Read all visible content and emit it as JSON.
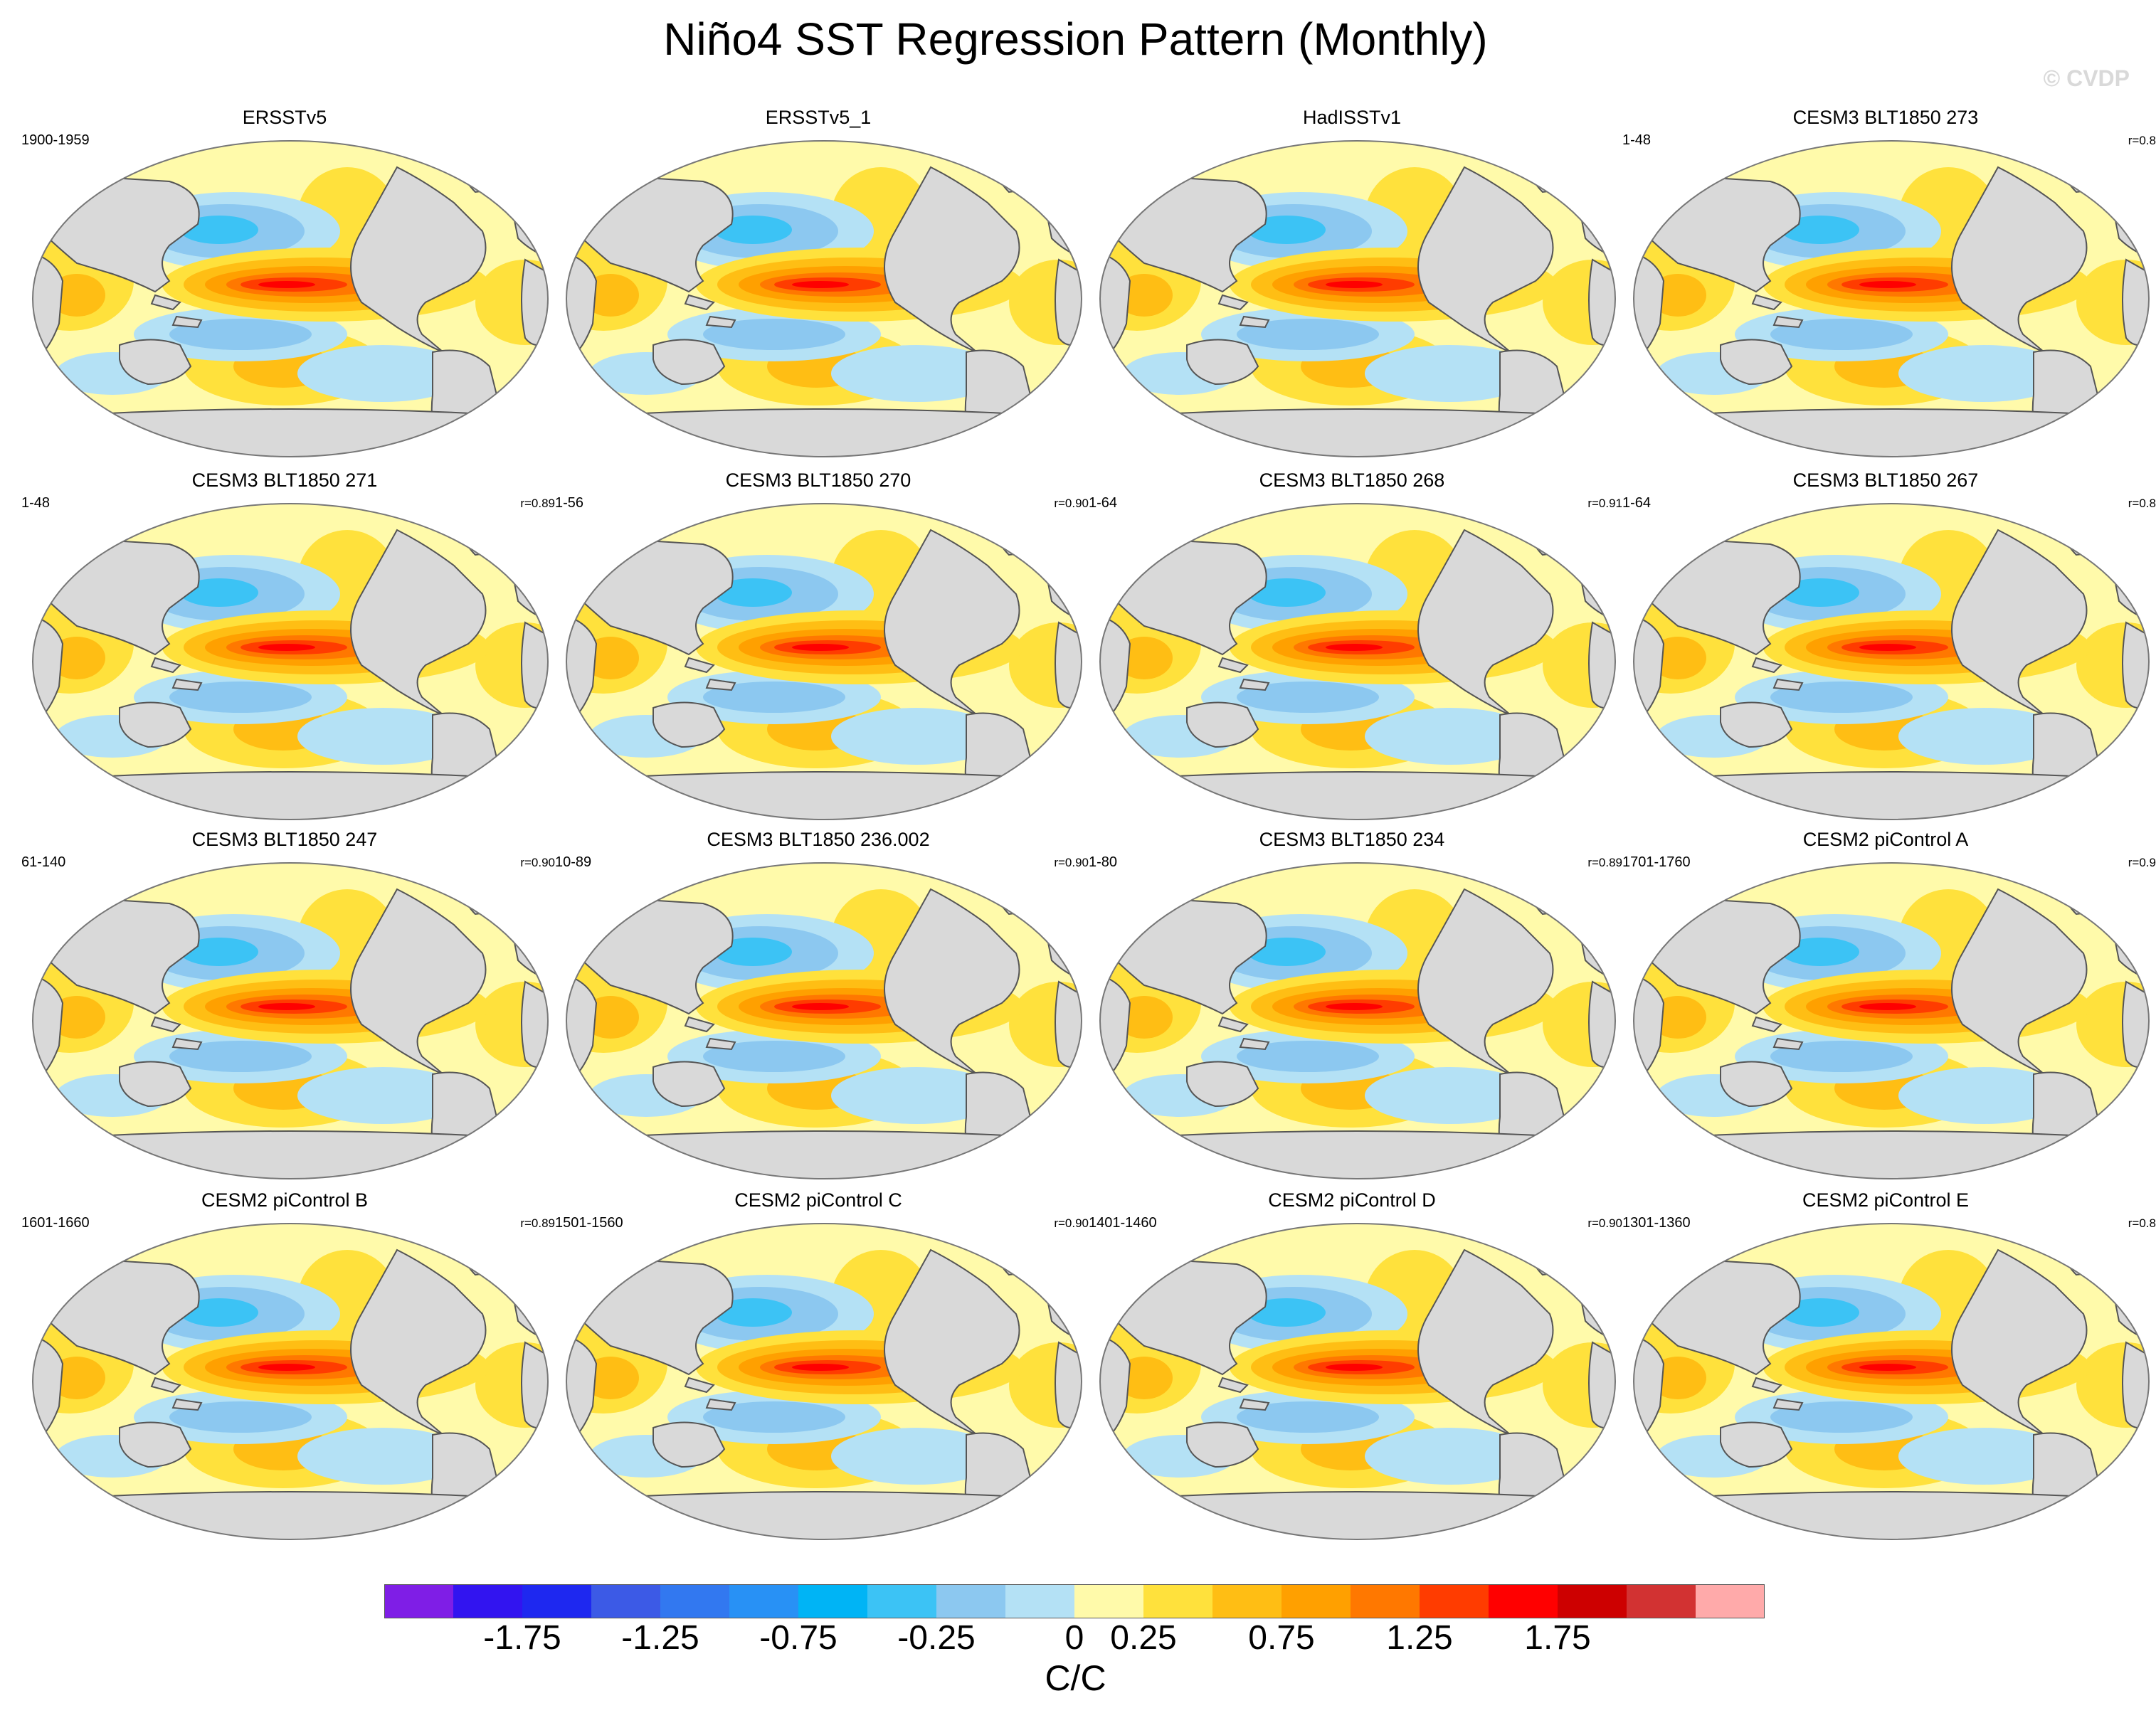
{
  "title": "Niño4 SST Regression Pattern (Monthly)",
  "watermark": "© CVDP",
  "panels": [
    {
      "title": "ERSSTv5",
      "years": "1900-1959",
      "corr": ""
    },
    {
      "title": "ERSSTv5_1",
      "years": "",
      "corr": ""
    },
    {
      "title": "HadISSTv1",
      "years": "",
      "corr": ""
    },
    {
      "title": "CESM3 BLT1850 273",
      "years": "1-48",
      "corr": "r=0.8"
    },
    {
      "title": "CESM3 BLT1850 271",
      "years": "1-48",
      "corr": "r=0.89"
    },
    {
      "title": "CESM3 BLT1850 270",
      "years": "1-56",
      "corr": "r=0.90"
    },
    {
      "title": "CESM3 BLT1850 268",
      "years": "1-64",
      "corr": "r=0.91"
    },
    {
      "title": "CESM3 BLT1850 267",
      "years": "1-64",
      "corr": "r=0.8"
    },
    {
      "title": "CESM3 BLT1850 247",
      "years": "61-140",
      "corr": "r=0.90"
    },
    {
      "title": "CESM3 BLT1850 236.002",
      "years": "10-89",
      "corr": "r=0.90"
    },
    {
      "title": "CESM3 BLT1850 234",
      "years": "1-80",
      "corr": "r=0.89"
    },
    {
      "title": "CESM2 piControl A",
      "years": "1701-1760",
      "corr": "r=0.9"
    },
    {
      "title": "CESM2 piControl B",
      "years": "1601-1660",
      "corr": "r=0.89"
    },
    {
      "title": "CESM2 piControl C",
      "years": "1501-1560",
      "corr": "r=0.90"
    },
    {
      "title": "CESM2 piControl D",
      "years": "1401-1460",
      "corr": "r=0.90"
    },
    {
      "title": "CESM2 piControl E",
      "years": "1301-1360",
      "corr": "r=0.8"
    }
  ],
  "colorbar": {
    "colors": [
      "#7f1ee6",
      "#3214f0",
      "#1e28f0",
      "#3c5ae6",
      "#3278f0",
      "#2891f5",
      "#00b4f5",
      "#3cc3f5",
      "#8cc8f0",
      "#b4e1f5",
      "#fffaaa",
      "#ffe13c",
      "#ffbe14",
      "#ffa000",
      "#ff7800",
      "#ff3c00",
      "#ff0000",
      "#cd0000",
      "#d23232",
      "#ffaaaa"
    ],
    "labels": [
      "-1.75",
      "-1.25",
      "-0.75",
      "-0.25",
      "0",
      "0.25",
      "0.75",
      "1.25",
      "1.75"
    ],
    "units": "C/C"
  },
  "chart_data": {
    "type": "heatmap",
    "title": "Niño4 SST Regression Pattern (Monthly)",
    "variable": "SST regression on Niño4 index",
    "units": "C/C",
    "color_levels": [
      -2.0,
      -1.75,
      -1.5,
      -1.25,
      -1.0,
      -0.75,
      -0.5,
      -0.25,
      -0.1,
      0,
      0.1,
      0.25,
      0.5,
      0.75,
      1.0,
      1.25,
      1.5,
      1.75,
      2.0
    ],
    "colorbar_ticks": [
      -1.75,
      -1.25,
      -0.75,
      -0.25,
      0,
      0.25,
      0.75,
      1.25,
      1.75
    ],
    "panel_count": 16,
    "max_equatorial_pacific_value_approx": 1.6
  }
}
